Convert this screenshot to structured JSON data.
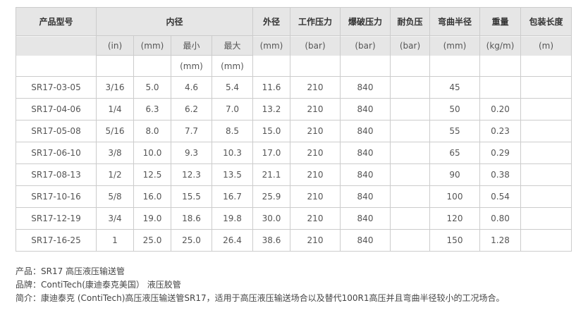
{
  "header": {
    "model": "产品型号",
    "inner": "内径",
    "outer": "外径",
    "work": "工作压力",
    "burst": "爆破压力",
    "neg": "耐负压",
    "bend": "弯曲半径",
    "weight": "重量",
    "length": "包装长度"
  },
  "units": {
    "in": "(in)",
    "mm": "(mm)",
    "min": "最小",
    "max": "最大",
    "min_u": "(mm)",
    "max_u": "(mm)",
    "outer": "(mm)",
    "work": "(bar)",
    "burst": "(bar)",
    "neg": "(bar)",
    "bend": "(mm)",
    "weight": "(kg/m)",
    "length": "(m)"
  },
  "rows": [
    [
      "SR17-03-05",
      "3/16",
      "5.0",
      "4.6",
      "5.4",
      "11.6",
      "210",
      "840",
      "",
      "45",
      "",
      ""
    ],
    [
      "SR17-04-06",
      "1/4",
      "6.3",
      "6.2",
      "7.0",
      "13.2",
      "210",
      "840",
      "",
      "50",
      "0.20",
      ""
    ],
    [
      "SR17-05-08",
      "5/16",
      "8.0",
      "7.7",
      "8.5",
      "15.0",
      "210",
      "840",
      "",
      "55",
      "0.23",
      ""
    ],
    [
      "SR17-06-10",
      "3/8",
      "10.0",
      "9.3",
      "10.3",
      "17.0",
      "210",
      "840",
      "",
      "65",
      "0.29",
      ""
    ],
    [
      "SR17-08-13",
      "1/2",
      "12.5",
      "12.3",
      "13.5",
      "21.1",
      "210",
      "840",
      "",
      "90",
      "0.38",
      ""
    ],
    [
      "SR17-10-16",
      "5/8",
      "16.0",
      "15.5",
      "16.7",
      "25.9",
      "210",
      "840",
      "",
      "100",
      "0.54",
      ""
    ],
    [
      "SR17-12-19",
      "3/4",
      "19.0",
      "18.6",
      "19.8",
      "30.0",
      "210",
      "840",
      "",
      "120",
      "0.80",
      ""
    ],
    [
      "SR17-16-25",
      "1",
      "25.0",
      "25.0",
      "26.4",
      "38.6",
      "210",
      "840",
      "",
      "150",
      "1.28",
      ""
    ]
  ],
  "notes": [
    "产品：SR17 高压液压输送管",
    "品牌：ContiTech(康迪泰克美国） 液压胶管",
    "简介：康迪泰克 (ContiTech)高压液压输送管SR17，适用于高压液压输送场合以及替代100R1高压并且弯曲半径较小的工况场合。"
  ]
}
